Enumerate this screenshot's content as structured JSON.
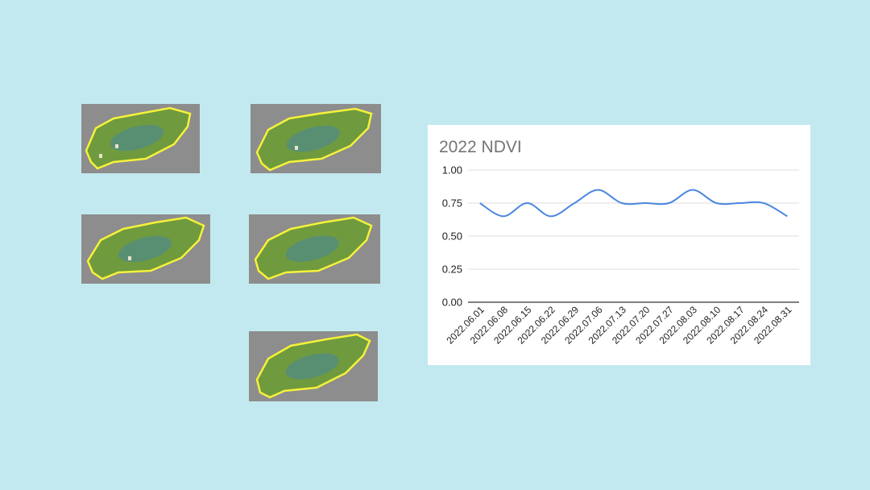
{
  "colors": {
    "background": "#c2e9f0",
    "thumb_bg": "#8d8d8d",
    "outline": "#f5f23a",
    "field_green": "#6f9a3e",
    "field_blue": "#4e8a8a",
    "line": "#4a86e0",
    "grid": "#dddddd"
  },
  "thumbnails": [
    {
      "id": "thumb-1"
    },
    {
      "id": "thumb-2"
    },
    {
      "id": "thumb-3"
    },
    {
      "id": "thumb-4"
    },
    {
      "id": "thumb-5"
    }
  ],
  "chart_data": {
    "type": "line",
    "title": "2022 NDVI",
    "xlabel": "",
    "ylabel": "",
    "ylim": [
      0,
      1
    ],
    "yticks": [
      "0.00",
      "0.25",
      "0.50",
      "0.75",
      "1.00"
    ],
    "grid": true,
    "categories": [
      "2022.06.01",
      "2022.06.08",
      "2022.06.15",
      "2022.06.22",
      "2022.06.29",
      "2022.07.06",
      "2022.07.13",
      "2022.07.20",
      "2022.07.27",
      "2022.08.03",
      "2022.08.10",
      "2022.08.17",
      "2022.08.24",
      "2022.08.31"
    ],
    "series": [
      {
        "values": [
          0.75,
          0.65,
          0.75,
          0.65,
          0.75,
          0.85,
          0.75,
          0.75,
          0.75,
          0.85,
          0.75,
          0.75,
          0.75,
          0.65
        ]
      }
    ]
  }
}
